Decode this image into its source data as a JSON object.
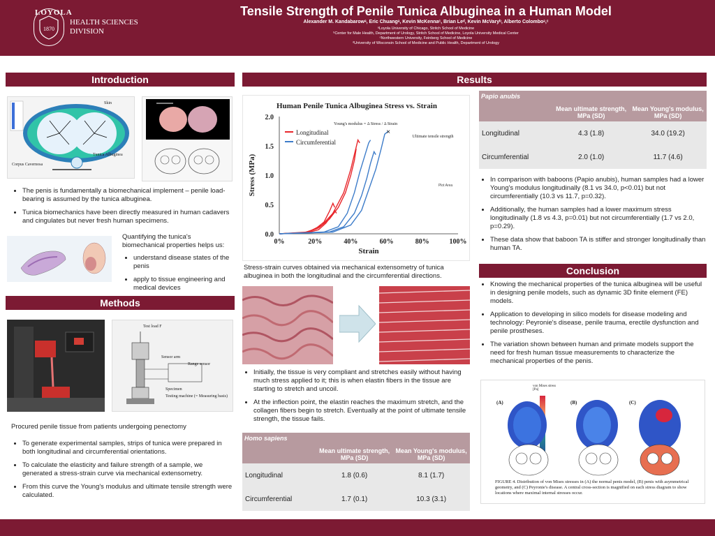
{
  "header": {
    "logo_university": "LOYOLA",
    "logo_line1": "HEALTH SCIENCES",
    "logo_line2": "DIVISION",
    "title": "Tensile Strength of Penile Tunica Albuginea in a Human Model",
    "authors": "Alexander M. Kandabarowᵃ, Eric Chuangᵃ, Kevin McKennaᶜ, Brian Leᵈ, Kevin McVaryᵇ, Alberto Colomboᵃ,ᶜ",
    "affiliations": [
      "ᵃLoyola University of Chicago, Stritch School of Medicine",
      "ᵇCenter for Male Health, Department of Urology, Stritch School of Medicine, Loyola University Medical Center",
      "ᶜNorthwestern University, Feinberg School of Medicine",
      "ᵈUniversity of Wisconsin School of Medicine and Public Health, Department of Urology"
    ]
  },
  "intro": {
    "heading": "Introduction",
    "fig_labels": {
      "skin": "Skin",
      "tunica": "Tunica Albuginea",
      "cc": "Corpus Cavernosa"
    },
    "bullets": [
      "The penis is fundamentally a biomechanical implement – penile load-bearing is assumed by the tunica albuginea.",
      "Tunica biomechanics have been directly measured in human cadavers and cingulates but never fresh human specimens."
    ],
    "quant_lead": "Quantifying the tunica's biomechanical properties helps us:",
    "quant_bullets": [
      " understand disease states of the penis",
      "apply to tissue engineering and medical devices"
    ]
  },
  "methods": {
    "heading": "Methods",
    "diagram_labels": {
      "load": "Test load F",
      "arm": "Sensor arm",
      "range": "Range sensor",
      "specimen": "Specimen",
      "machine": "Testing machine (= Measuring basis)"
    },
    "lead": "Procured penile tissue from patients undergoing penectomy",
    "bullets": [
      "To generate experimental samples, strips of tunica were prepared in both longitudinal and circumferential orientations.",
      "To calculate the elasticity and failure strength of a sample, we generated a stress-strain curve via mechanical extensometry.",
      "From this curve the Young's modulus and ultimate tensile strength were calculated."
    ]
  },
  "results": {
    "heading": "Results",
    "chart_caption": "Stress-strain curves obtained via mechanical extensometry of tunica albuginea in both the longitudinal and the circumferential directions.",
    "tissue_bullets": [
      "Initially, the tissue is very compliant and stretches easily without having much stress applied to it; this is when elastin fibers in the tissue are starting to stretch and uncoil.",
      "At the inflection point, the elastin reaches the maximum stretch, and the collagen fibers begin to stretch. Eventually at the point of ultimate tensile strength, the tissue fails."
    ],
    "human_table": {
      "species": "Homo sapiens",
      "col1": "Mean ultimate strength, MPa (SD)",
      "col2": "Mean Young's modulus, MPa (SD)",
      "rows": [
        {
          "label": "Longitudinal",
          "v1": "1.8 (0.6)",
          "v2": "8.1 (1.7)"
        },
        {
          "label": "Circumferential",
          "v1": "1.7 (0.1)",
          "v2": "10.3 (3.1)"
        }
      ]
    },
    "baboon_table": {
      "species": "Papio anubis",
      "col1": "Mean ultimate strength, MPa (SD)",
      "col2": "Mean Young's modulus, MPa (SD)",
      "rows": [
        {
          "label": "Longitudinal",
          "v1": "4.3 (1.8)",
          "v2": "34.0 (19.2)"
        },
        {
          "label": "Circumferential",
          "v1": "2.0 (1.0)",
          "v2": "11.7 (4.6)"
        }
      ]
    },
    "compare_bullets": [
      "In comparison with baboons (Papio anubis), human samples had a lower Young's modulus longitudinally (8.1 vs 34.0, p<0.01) but not circumferentially (10.3 vs 11.7, p=0.32).",
      "Additionally, the human samples had a lower maximum stress longitudinally (1.8 vs 4.3, p=0.01) but not circumferentially (1.7 vs 2.0, p=0.29).",
      "These data show that baboon TA is stiffer and stronger longitudinally than human TA."
    ]
  },
  "conclusion": {
    "heading": "Conclusion",
    "bullets": [
      "Knowing the mechanical properties of the tunica albuginea will be useful in designing penile models, such as dynamic 3D finite element (FE) models.",
      "Application to developing in silico models for disease modeling and technology: Peyronie's disease, penile trauma, erectile dysfunction and penile prostheses.",
      "The variation shown between human and primate models support the need for fresh human tissue measurements to characterize the mechanical properties of the penis."
    ],
    "fig_caption": "FIGURE 4. Distribution of von Mises stresses in (A) the normal penis model, (B) penis with asymmetrical geometry, and (C) Peyronie's disease. A central cross-section is magnified on each stress diagram to show locations where maximal internal stresses occur.",
    "panels": [
      "(A)",
      "(B)",
      "(C)"
    ],
    "legend_title": "von Mises stress [Pa]"
  },
  "chart_data": {
    "type": "line",
    "title": "Human Penile Tunica Albuginea Stress vs. Strain",
    "xlabel": "Strain",
    "ylabel": "Stress (MPa)",
    "xlim": [
      0,
      1.0
    ],
    "ylim": [
      0,
      2.0
    ],
    "xticks": [
      "0%",
      "20%",
      "40%",
      "60%",
      "80%",
      "100%"
    ],
    "yticks": [
      "0.0",
      "0.5",
      "1.0",
      "1.5",
      "2.0"
    ],
    "legend": "top-left",
    "annotations": [
      "Young's modulus = Δ Stress / Δ Strain",
      "Ultimate tensile strength",
      "Plot Area"
    ],
    "series": [
      {
        "name": "Longitudinal",
        "color": "#e8262b",
        "curves": [
          [
            [
              0.0,
              0
            ],
            [
              0.15,
              0.02
            ],
            [
              0.22,
              0.1
            ],
            [
              0.28,
              0.25
            ],
            [
              0.33,
              0.45
            ],
            [
              0.37,
              0.7
            ],
            [
              0.4,
              1.0
            ],
            [
              0.42,
              1.25
            ],
            [
              0.43,
              1.45
            ]
          ],
          [
            [
              0.0,
              0
            ],
            [
              0.16,
              0.03
            ],
            [
              0.24,
              0.15
            ],
            [
              0.3,
              0.35
            ],
            [
              0.36,
              0.7
            ],
            [
              0.4,
              1.1
            ],
            [
              0.42,
              1.35
            ],
            [
              0.44,
              1.6
            ],
            [
              0.45,
              1.55
            ]
          ],
          [
            [
              0.0,
              0
            ],
            [
              0.14,
              0.02
            ],
            [
              0.2,
              0.08
            ],
            [
              0.25,
              0.2
            ],
            [
              0.28,
              0.38
            ],
            [
              0.3,
              0.52
            ],
            [
              0.31,
              0.45
            ]
          ],
          [
            [
              0.0,
              0
            ],
            [
              0.16,
              0.02
            ],
            [
              0.22,
              0.07
            ],
            [
              0.26,
              0.18
            ],
            [
              0.29,
              0.3
            ],
            [
              0.31,
              0.4
            ],
            [
              0.32,
              0.35
            ]
          ]
        ]
      },
      {
        "name": "Circumferential",
        "color": "#3d7cc9",
        "curves": [
          [
            [
              0.0,
              0
            ],
            [
              0.25,
              0.03
            ],
            [
              0.33,
              0.12
            ],
            [
              0.38,
              0.35
            ],
            [
              0.42,
              0.7
            ],
            [
              0.45,
              1.05
            ],
            [
              0.48,
              1.35
            ],
            [
              0.5,
              1.55
            ],
            [
              0.51,
              1.6
            ]
          ],
          [
            [
              0.0,
              0
            ],
            [
              0.28,
              0.03
            ],
            [
              0.36,
              0.12
            ],
            [
              0.42,
              0.35
            ],
            [
              0.46,
              0.65
            ],
            [
              0.49,
              0.95
            ],
            [
              0.51,
              1.2
            ],
            [
              0.53,
              1.4
            ],
            [
              0.54,
              1.35
            ]
          ],
          [
            [
              0.0,
              0
            ],
            [
              0.3,
              0.03
            ],
            [
              0.4,
              0.15
            ],
            [
              0.46,
              0.4
            ],
            [
              0.5,
              0.75
            ],
            [
              0.54,
              1.1
            ],
            [
              0.57,
              1.45
            ],
            [
              0.59,
              1.7
            ],
            [
              0.61,
              1.75
            ]
          ]
        ]
      }
    ],
    "uts_marker": [
      0.61,
      1.75
    ]
  }
}
